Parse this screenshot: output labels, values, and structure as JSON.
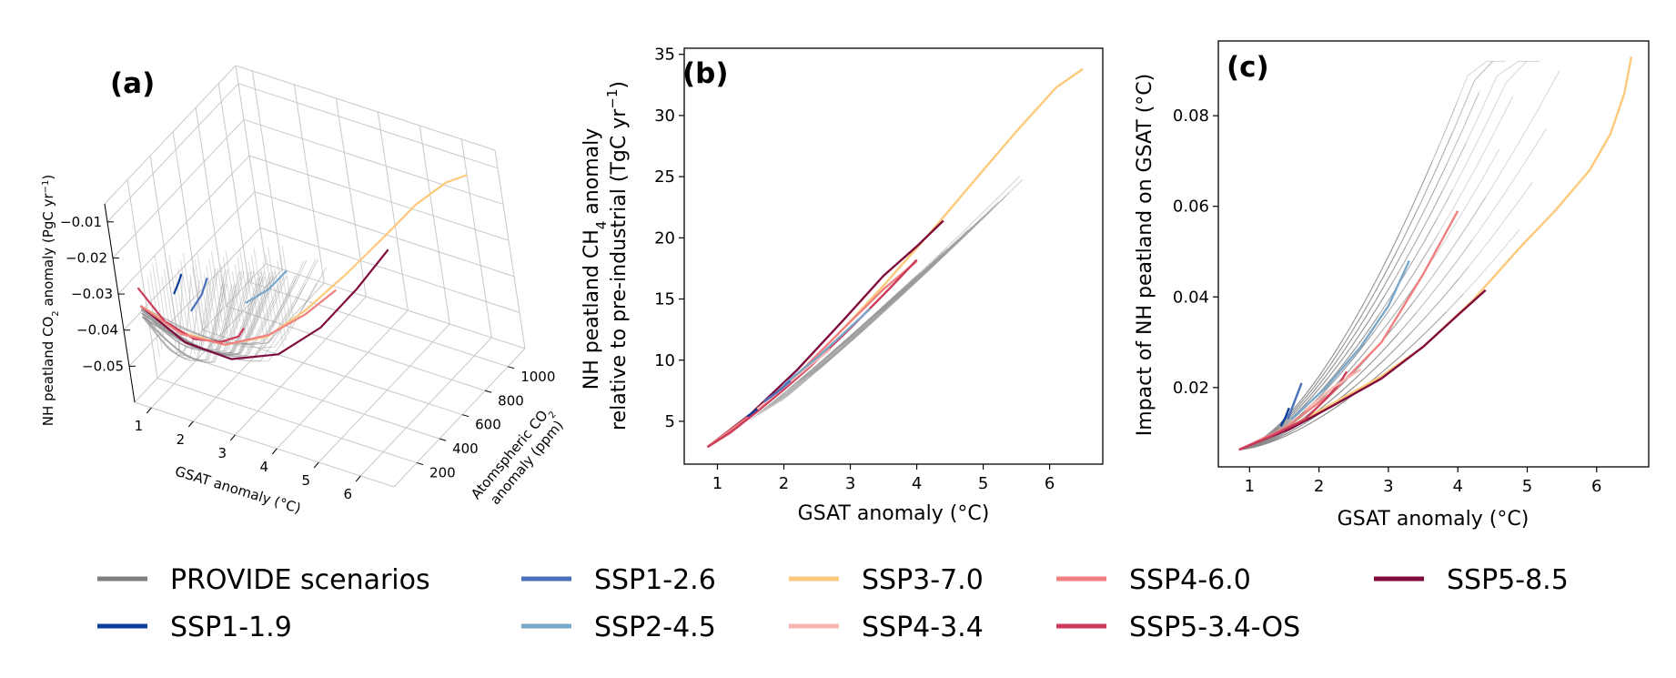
{
  "panels": {
    "a": {
      "label": "(a)"
    },
    "b": {
      "label": "(b)"
    },
    "c": {
      "label": "(c)"
    }
  },
  "chart_data": [
    {
      "id": "a",
      "type": "line",
      "projection": "3d",
      "xlabel": "GSAT anomaly (°C)",
      "ylabel_line1": "Atomspheric CO",
      "ylabel_sub": "2",
      "ylabel_line2": "anomaly (ppm)",
      "zlabel_prefix": "NH peatland CO",
      "zlabel_sub": "2",
      "zlabel_mid": " anomaly (PgC yr",
      "zlabel_sup": "−1",
      "zlabel_suffix": ")",
      "xlim": [
        0.6,
        6.8
      ],
      "ylim": [
        0,
        1150
      ],
      "zlim": [
        -0.06,
        -0.005
      ],
      "x_ticks": [
        "1",
        "2",
        "3",
        "4",
        "5",
        "6"
      ],
      "y_ticks": [
        "200",
        "400",
        "600",
        "800",
        "1000"
      ],
      "z_ticks": [
        "−0.01",
        "−0.02",
        "−0.03",
        "−0.04",
        "−0.05"
      ],
      "series": [
        {
          "name": "SSP3-7.0",
          "color": "#fdc97a",
          "x": [
            0.85,
            1.5,
            2.2,
            2.9,
            3.5,
            4.2,
            4.9,
            5.5,
            6.1,
            6.5
          ],
          "y": [
            80,
            170,
            270,
            390,
            520,
            660,
            790,
            880,
            950,
            1000
          ],
          "z": [
            -0.035,
            -0.043,
            -0.047,
            -0.046,
            -0.041,
            -0.033,
            -0.024,
            -0.016,
            -0.01,
            -0.008
          ]
        },
        {
          "name": "SSP5-8.5",
          "color": "#7f0c3c",
          "x": [
            0.85,
            1.5,
            2.2,
            2.9,
            3.5,
            4.0,
            4.4
          ],
          "y": [
            80,
            180,
            300,
            450,
            620,
            790,
            950
          ],
          "z": [
            -0.035,
            -0.046,
            -0.052,
            -0.053,
            -0.049,
            -0.042,
            -0.035
          ]
        },
        {
          "name": "SSP5-3.4-OS",
          "color": "#cc3c5a",
          "x": [
            0.85,
            1.2,
            1.6,
            2.0,
            2.3,
            2.4
          ],
          "y": [
            80,
            140,
            220,
            300,
            350,
            370
          ],
          "z": [
            -0.03,
            -0.04,
            -0.046,
            -0.048,
            -0.047,
            -0.045
          ]
        },
        {
          "name": "SSP4-6.0",
          "color": "#f08080",
          "x": [
            0.85,
            1.5,
            2.2,
            2.9,
            3.5,
            4.0
          ],
          "y": [
            80,
            160,
            270,
            400,
            520,
            630
          ],
          "z": [
            -0.035,
            -0.043,
            -0.047,
            -0.046,
            -0.042,
            -0.037
          ]
        },
        {
          "name": "SSP1-2.6",
          "color": "#4a6fbb",
          "x": [
            1.5,
            1.7,
            1.8
          ],
          "y": [
            260,
            300,
            330
          ],
          "z": [
            -0.04,
            -0.036,
            -0.032
          ]
        },
        {
          "name": "SSP2-4.5",
          "color": "#79a7c9",
          "x": [
            2.5,
            2.9,
            3.2
          ],
          "y": [
            380,
            450,
            520
          ],
          "z": [
            -0.038,
            -0.035,
            -0.031
          ]
        },
        {
          "name": "SSP1-1.9",
          "color": "#0c3c99",
          "x": [
            1.4,
            1.5,
            1.55
          ],
          "y": [
            180,
            200,
            215
          ],
          "z": [
            -0.033,
            -0.03,
            -0.028
          ]
        }
      ]
    },
    {
      "id": "b",
      "type": "line",
      "xlabel": "GSAT anomaly (°C)",
      "ylabel_line1_prefix": "NH peatland CH",
      "ylabel_line1_sub": "4",
      "ylabel_line1_suffix": " anomaly",
      "ylabel_line2_prefix": "relative to pre-industrial (TgC yr",
      "ylabel_line2_sup": "−1",
      "ylabel_line2_suffix": ")",
      "xlim": [
        0.5,
        6.8
      ],
      "ylim": [
        1.5,
        35.5
      ],
      "x_ticks": [
        1,
        2,
        3,
        4,
        5,
        6
      ],
      "y_ticks": [
        5,
        10,
        15,
        20,
        25,
        30,
        35
      ],
      "series": [
        {
          "name": "SSP3-7.0",
          "color": "#fdc97a",
          "x": [
            0.85,
            1.5,
            2.2,
            2.9,
            3.5,
            4.2,
            4.9,
            5.5,
            6.1,
            6.5
          ],
          "y": [
            2.9,
            5.5,
            8.8,
            12.6,
            16.1,
            20.4,
            24.9,
            28.7,
            32.3,
            33.8
          ]
        },
        {
          "name": "SSP5-8.5",
          "color": "#7f0c3c",
          "x": [
            0.85,
            1.5,
            2.2,
            2.9,
            3.5,
            4.0,
            4.4
          ],
          "y": [
            2.9,
            5.6,
            9.2,
            13.3,
            16.9,
            19.3,
            21.4
          ]
        },
        {
          "name": "SSP4-6.0",
          "color": "#f08080",
          "x": [
            0.85,
            1.5,
            2.2,
            2.9,
            3.5,
            4.0
          ],
          "y": [
            2.9,
            5.5,
            8.8,
            12.6,
            15.8,
            18.1
          ]
        },
        {
          "name": "SSP5-3.4-OS",
          "color": "#cc3c5a",
          "x": [
            0.85,
            1.2,
            1.6,
            2.0,
            2.4,
            3.0,
            3.6,
            4.0
          ],
          "y": [
            2.9,
            4.1,
            5.8,
            7.6,
            9.5,
            12.6,
            15.9,
            18.2
          ]
        },
        {
          "name": "SSP4-3.4",
          "color": "#f7b7b0",
          "x": [
            1.6,
            2.0,
            2.4,
            2.7
          ],
          "y": [
            6.0,
            7.8,
            9.6,
            10.9
          ]
        },
        {
          "name": "SSP2-4.5",
          "color": "#79a7c9",
          "x": [
            2.0,
            2.5,
            3.0,
            3.3
          ],
          "y": [
            8.0,
            10.2,
            12.7,
            14.2
          ]
        },
        {
          "name": "SSP1-2.6",
          "color": "#4a6fbb",
          "x": [
            1.7,
            1.9,
            2.1
          ],
          "y": [
            6.6,
            7.4,
            8.3
          ]
        },
        {
          "name": "SSP1-1.9",
          "color": "#0c3c99",
          "x": [
            1.45,
            1.55,
            1.6
          ],
          "y": [
            5.4,
            5.8,
            6.0
          ]
        }
      ]
    },
    {
      "id": "c",
      "type": "line",
      "xlabel": "GSAT anomaly (°C)",
      "ylabel": "Impact of NH peatland on GSAT (°C)",
      "xlim": [
        0.55,
        6.75
      ],
      "ylim": [
        0.0025,
        0.0965
      ],
      "x_ticks": [
        1,
        2,
        3,
        4,
        5,
        6
      ],
      "y_ticks": [
        "0.02",
        "0.04",
        "0.06",
        "0.08"
      ],
      "series": [
        {
          "name": "SSP3-7.0",
          "color": "#fdc97a",
          "x": [
            0.85,
            1.2,
            1.6,
            2.2,
            2.9,
            3.5,
            4.2,
            4.9,
            5.4,
            5.9,
            6.2,
            6.4,
            6.5
          ],
          "y": [
            0.0063,
            0.0085,
            0.0115,
            0.0165,
            0.0225,
            0.029,
            0.039,
            0.051,
            0.059,
            0.068,
            0.076,
            0.085,
            0.093
          ]
        },
        {
          "name": "SSP5-8.5",
          "color": "#7f0c3c",
          "x": [
            0.85,
            1.2,
            1.6,
            2.2,
            2.9,
            3.5,
            4.0,
            4.4
          ],
          "y": [
            0.0063,
            0.0085,
            0.011,
            0.016,
            0.022,
            0.029,
            0.036,
            0.0415
          ]
        },
        {
          "name": "SSP4-6.0",
          "color": "#f08080",
          "x": [
            0.85,
            1.5,
            2.2,
            2.9,
            3.5,
            4.0
          ],
          "y": [
            0.0063,
            0.011,
            0.019,
            0.03,
            0.045,
            0.059
          ]
        },
        {
          "name": "SSP5-3.4-OS",
          "color": "#cc3c5a",
          "x": [
            0.85,
            1.3,
            1.8,
            2.1,
            2.3,
            2.4
          ],
          "y": [
            0.0063,
            0.0092,
            0.013,
            0.0175,
            0.021,
            0.0235
          ]
        },
        {
          "name": "SSP2-4.5",
          "color": "#79a7c9",
          "x": [
            1.6,
            2.1,
            2.6,
            3.0,
            3.3
          ],
          "y": [
            0.013,
            0.02,
            0.029,
            0.038,
            0.048
          ]
        },
        {
          "name": "SSP4-3.4",
          "color": "#f7b7b0",
          "x": [
            1.8,
            2.2,
            2.6
          ],
          "y": [
            0.015,
            0.02,
            0.024
          ]
        },
        {
          "name": "SSP1-2.6",
          "color": "#4a6fbb",
          "x": [
            1.55,
            1.65,
            1.75
          ],
          "y": [
            0.013,
            0.017,
            0.021
          ]
        },
        {
          "name": "SSP1-1.9",
          "color": "#0c3c99",
          "x": [
            1.45,
            1.52,
            1.57
          ],
          "y": [
            0.0115,
            0.0135,
            0.0155
          ]
        }
      ]
    }
  ],
  "legend": {
    "entries": [
      {
        "label": "PROVIDE scenarios",
        "color": "#808080"
      },
      {
        "label": "SSP1-1.9",
        "color": "#0c3c99"
      },
      {
        "label": "SSP1-2.6",
        "color": "#4a6fbb"
      },
      {
        "label": "SSP2-4.5",
        "color": "#79a7c9"
      },
      {
        "label": "SSP3-7.0",
        "color": "#fdc97a"
      },
      {
        "label": "SSP4-3.4",
        "color": "#f7b7b0"
      },
      {
        "label": "SSP4-6.0",
        "color": "#f08080"
      },
      {
        "label": "SSP5-3.4-OS",
        "color": "#cc3c5a"
      },
      {
        "label": "SSP5-8.5",
        "color": "#7f0c3c"
      }
    ]
  }
}
